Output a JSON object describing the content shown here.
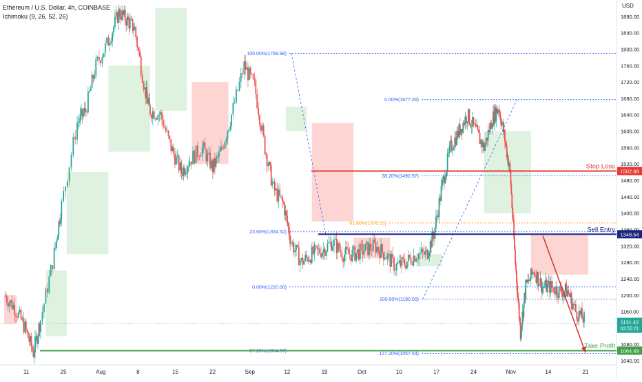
{
  "header": {
    "title": "Ethereum / U.S. Dollar, 4h, COINBASE",
    "indicator": "Ichimoku (9, 26, 52, 26)"
  },
  "currency_label": "USD",
  "colors": {
    "up": "#26a69a",
    "down": "#ef5350",
    "cloud_bull": "rgba(76,175,80,0.18)",
    "cloud_bear": "rgba(244,67,54,0.22)",
    "fib": "#2962ff",
    "fib_orange": "#ff9800",
    "stop_loss": "#e53935",
    "sell_entry": "#1a237e",
    "take_profit": "#43a047",
    "arrow": "#d32f2f"
  },
  "chart_data": {
    "type": "candlestick",
    "ylim": [
      1030,
      1920
    ],
    "y_ticks": [
      1040,
      1080,
      1120,
      1160,
      1200,
      1240,
      1280,
      1320,
      1360,
      1400,
      1440,
      1480,
      1520,
      1560,
      1600,
      1640,
      1680,
      1720,
      1760,
      1800,
      1840,
      1880
    ],
    "x_ticks": [
      "11",
      "25",
      "Aug",
      "8",
      "15",
      "22",
      "Sep",
      "12",
      "19",
      "Oct",
      "10",
      "17",
      "24",
      "Nov",
      "14",
      "21"
    ],
    "close_path": [
      [
        0,
        1200
      ],
      [
        10,
        1170
      ],
      [
        20,
        1120
      ],
      [
        28,
        1060
      ],
      [
        35,
        1140
      ],
      [
        48,
        1300
      ],
      [
        55,
        1420
      ],
      [
        70,
        1620
      ],
      [
        78,
        1650
      ],
      [
        88,
        1760
      ],
      [
        100,
        1820
      ],
      [
        110,
        1890
      ],
      [
        118,
        1870
      ],
      [
        125,
        1850
      ],
      [
        135,
        1700
      ],
      [
        140,
        1650
      ],
      [
        150,
        1640
      ],
      [
        160,
        1560
      ],
      [
        170,
        1500
      ],
      [
        178,
        1530
      ],
      [
        190,
        1560
      ],
      [
        200,
        1510
      ],
      [
        208,
        1550
      ],
      [
        218,
        1640
      ],
      [
        230,
        1760
      ],
      [
        240,
        1710
      ],
      [
        250,
        1560
      ],
      [
        258,
        1460
      ],
      [
        268,
        1420
      ],
      [
        275,
        1330
      ],
      [
        285,
        1280
      ],
      [
        295,
        1300
      ],
      [
        305,
        1310
      ],
      [
        315,
        1330
      ],
      [
        325,
        1300
      ],
      [
        335,
        1300
      ],
      [
        345,
        1310
      ],
      [
        355,
        1320
      ],
      [
        365,
        1300
      ],
      [
        375,
        1270
      ],
      [
        385,
        1280
      ],
      [
        395,
        1300
      ],
      [
        405,
        1300
      ],
      [
        412,
        1350
      ],
      [
        420,
        1470
      ],
      [
        428,
        1560
      ],
      [
        436,
        1600
      ],
      [
        444,
        1640
      ],
      [
        452,
        1600
      ],
      [
        460,
        1560
      ],
      [
        468,
        1630
      ],
      [
        474,
        1660
      ],
      [
        480,
        1580
      ],
      [
        485,
        1500
      ],
      [
        490,
        1280
      ],
      [
        495,
        1110
      ],
      [
        500,
        1220
      ],
      [
        508,
        1260
      ],
      [
        516,
        1220
      ],
      [
        524,
        1220
      ],
      [
        532,
        1210
      ],
      [
        540,
        1210
      ],
      [
        548,
        1160
      ],
      [
        556,
        1140
      ]
    ],
    "cloud_bands": [
      {
        "x0": 0,
        "x1": 12,
        "lo": 1130,
        "hi": 1200,
        "kind": "bear"
      },
      {
        "x0": 40,
        "x1": 60,
        "lo": 1100,
        "hi": 1260,
        "kind": "bull"
      },
      {
        "x0": 60,
        "x1": 100,
        "lo": 1300,
        "hi": 1500,
        "kind": "bull"
      },
      {
        "x0": 100,
        "x1": 140,
        "lo": 1550,
        "hi": 1760,
        "kind": "bull"
      },
      {
        "x0": 145,
        "x1": 175,
        "lo": 1650,
        "hi": 1900,
        "kind": "bull"
      },
      {
        "x0": 180,
        "x1": 215,
        "lo": 1520,
        "hi": 1720,
        "kind": "bear"
      },
      {
        "x0": 270,
        "x1": 290,
        "lo": 1600,
        "hi": 1660,
        "kind": "bull"
      },
      {
        "x0": 295,
        "x1": 335,
        "lo": 1380,
        "hi": 1620,
        "kind": "bear"
      },
      {
        "x0": 335,
        "x1": 370,
        "lo": 1290,
        "hi": 1340,
        "kind": "bear"
      },
      {
        "x0": 395,
        "x1": 420,
        "lo": 1270,
        "hi": 1300,
        "kind": "bull"
      },
      {
        "x0": 460,
        "x1": 505,
        "lo": 1400,
        "hi": 1600,
        "kind": "bull"
      },
      {
        "x0": 505,
        "x1": 560,
        "lo": 1250,
        "hi": 1350,
        "kind": "bear"
      }
    ]
  },
  "fib_levels": [
    {
      "label": "100.00%(1789.98)",
      "price": 1789.98,
      "color": "fib"
    },
    {
      "label": "0.00%(1677.00)",
      "price": 1677.0,
      "color": "fib"
    },
    {
      "label": "38.20%(1490.97)",
      "price": 1490.97,
      "color": "fib"
    },
    {
      "label": "61.80%(1376.03)",
      "price": 1376.03,
      "color": "fib_orange"
    },
    {
      "label": "23.60%(1354.52)",
      "price": 1354.52,
      "color": "fib"
    },
    {
      "label": "0.00%(1220.00)",
      "price": 1220.0,
      "color": "fib"
    },
    {
      "label": "100.00%(1190.00)",
      "price": 1190.0,
      "color": "fib"
    },
    {
      "label": "27.20%(1064.07)",
      "price": 1064.07,
      "color": "fib"
    },
    {
      "label": "127.20%(1057.54)",
      "price": 1057.54,
      "color": "fib"
    }
  ],
  "trade_lines": [
    {
      "name": "Stop Loss",
      "price": 1502.68,
      "price_label": "1502.68",
      "color": "stop_loss"
    },
    {
      "name": "Sell Entry",
      "price": 1348.54,
      "price_label": "1348.54",
      "color": "sell_entry"
    },
    {
      "name": "Take Profit",
      "price": 1064.49,
      "price_label": "1064.49",
      "color": "take_profit"
    }
  ],
  "last_price": {
    "value": "1131.42",
    "countdown": "03:55:21"
  }
}
